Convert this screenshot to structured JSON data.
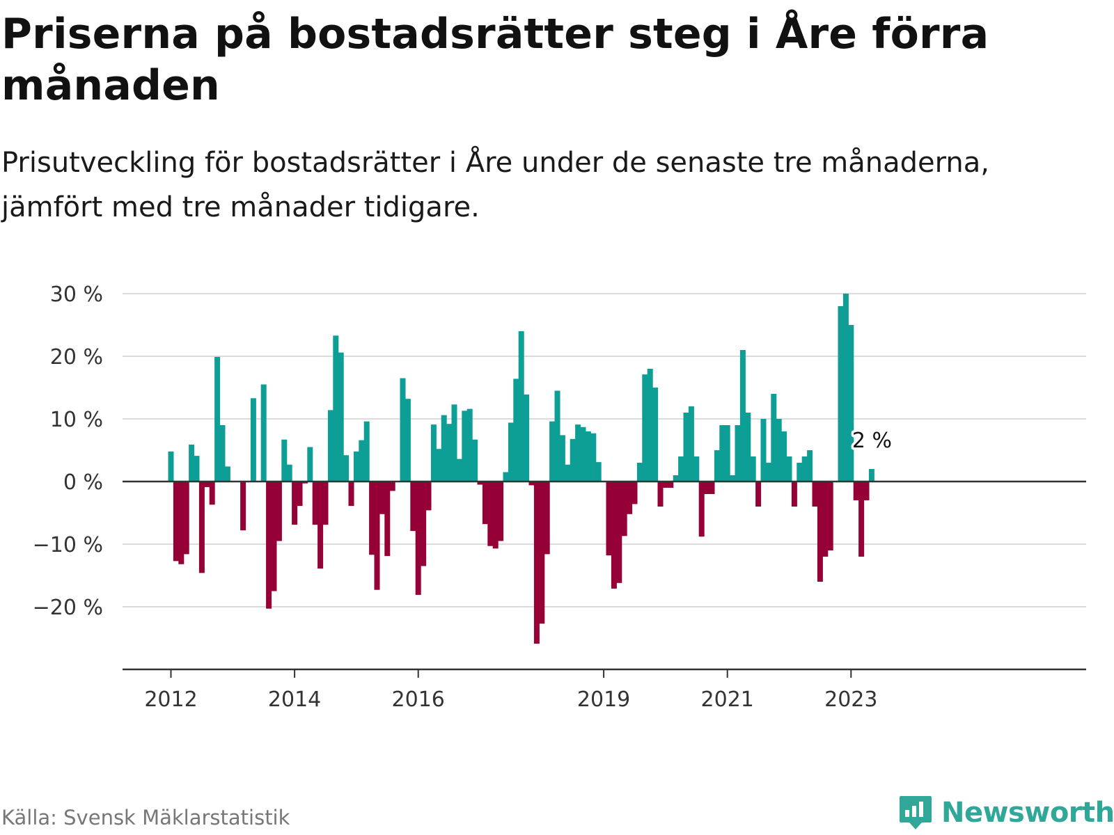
{
  "title": "Priserna på bostadsrätter steg i Åre förra månaden",
  "subtitle": "Prisutveckling för bostadsrätter i Åre under de senaste tre månaderna, jämfört med tre månader tidigare.",
  "source": "Källa: Svensk Mäklarstatistik",
  "brand": "Newsworthy",
  "colors": {
    "positive": "#0d9e96",
    "negative": "#950037",
    "grid": "#dcdcdc",
    "axis": "#333333",
    "brand": "#31a79a"
  },
  "icons": {
    "brand_logo": "chart-bubble-icon"
  },
  "chart_data": {
    "type": "bar",
    "ylim": [
      -28,
      30
    ],
    "y_ticks": [
      30,
      20,
      10,
      0,
      -10,
      -20
    ],
    "y_tick_labels": [
      "30 %",
      "20 %",
      "10 %",
      "0 %",
      "−10 %",
      "−20 %"
    ],
    "x_tick_labels": [
      "2012",
      "2014",
      "2016",
      "2019",
      "2021",
      "2023"
    ],
    "x_tick_months": [
      0,
      24,
      48,
      84,
      108,
      132
    ],
    "start_month": "2012-01",
    "grid": true,
    "legend": "none",
    "annotation": {
      "month_index": 136,
      "text": "2 %"
    },
    "values": [
      4.8,
      -12.7,
      -13.2,
      -11.6,
      5.9,
      4.1,
      -14.6,
      -0.9,
      -3.7,
      19.9,
      9.0,
      2.4,
      0,
      0,
      -7.8,
      0,
      13.3,
      0,
      15.5,
      -20.3,
      -17.5,
      -9.5,
      6.7,
      2.7,
      -6.9,
      -3.9,
      -0.3,
      5.5,
      -6.9,
      -13.9,
      -6.9,
      11.4,
      23.3,
      20.6,
      4.2,
      -3.9,
      4.8,
      6.6,
      9.6,
      -11.7,
      -17.3,
      -5.2,
      -11.9,
      -1.5,
      0,
      16.5,
      13.2,
      -7.9,
      -18.1,
      -13.5,
      -4.6,
      9.1,
      5.2,
      10.6,
      9.2,
      12.3,
      3.6,
      11.3,
      11.6,
      6.7,
      -0.5,
      -6.8,
      -10.3,
      -10.7,
      -9.5,
      1.5,
      9.4,
      16.4,
      24.0,
      13.9,
      -0.6,
      -25.9,
      -22.7,
      -11.6,
      9.6,
      14.5,
      7.4,
      2.7,
      6.8,
      9.1,
      8.7,
      8.0,
      7.7,
      3.1,
      0,
      -11.8,
      -17.1,
      -16.2,
      -8.7,
      -5.2,
      -3.6,
      3.0,
      17.1,
      18.0,
      15.0,
      -4.0,
      -1.0,
      -1.0,
      1.0,
      4.0,
      11.0,
      12.0,
      4.0,
      -8.8,
      -2.0,
      -2.0,
      5.0,
      9.0,
      9.0,
      1.0,
      9.0,
      21.0,
      11.0,
      4.0,
      -4.0,
      10.0,
      3.0,
      14.0,
      10.0,
      8.0,
      4.0,
      -4.0,
      3.0,
      4.0,
      5.0,
      -4.0,
      -16.0,
      -12.0,
      -11.0,
      0,
      28.0,
      30.0,
      25.0,
      -3.0,
      -12.0,
      -3.0,
      2.0
    ]
  }
}
